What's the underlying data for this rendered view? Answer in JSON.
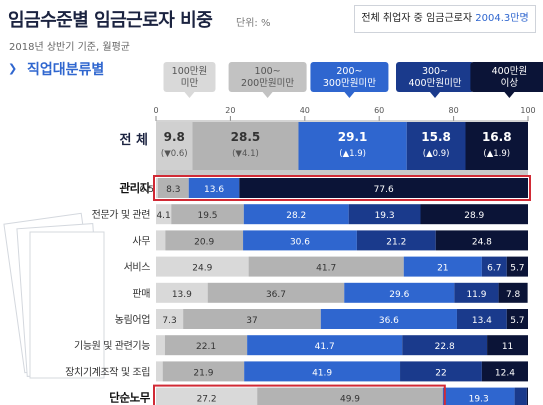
{
  "header": {
    "title": "임금수준별 임금근로자 비중",
    "unit": "단위: %",
    "subtitle": "2018년 상반기 기준, 월평균",
    "total_label": "전체 취업자 중 임금근로자",
    "total_value": "2004.3만명",
    "section": "직업대분류별"
  },
  "chart_data": {
    "type": "bar",
    "orientation": "horizontal-stacked",
    "xlim": [
      0,
      100
    ],
    "xticks": [
      0,
      20,
      40,
      60,
      80,
      100
    ],
    "legend_position": "top",
    "series": [
      {
        "name": "100만원 미만",
        "color": "#d9d9d9"
      },
      {
        "name": "100~200만원미만",
        "color": "#b3b3b3"
      },
      {
        "name": "200~300만원미만",
        "color": "#2f66cf"
      },
      {
        "name": "300~400만원미만",
        "color": "#1a3a8c"
      },
      {
        "name": "400만원 이상",
        "color": "#0b1437"
      }
    ],
    "total": {
      "label": "전 체",
      "values": [
        9.8,
        28.5,
        29.1,
        15.8,
        16.8
      ],
      "changes": [
        "▼0.6",
        "▼4.1",
        "▲1.9",
        "▲0.9",
        "▲1.9"
      ]
    },
    "categories": [
      "관리자",
      "전문가 및 관련",
      "사무",
      "서비스",
      "판매",
      "농림어업",
      "기능원 및 관련기능",
      "장치기계조작 및 조립",
      "단순노무"
    ],
    "values": [
      [
        0.5,
        8.3,
        13.6,
        0,
        77.6
      ],
      [
        4.1,
        19.5,
        28.2,
        19.3,
        28.9
      ],
      [
        2.5,
        20.9,
        30.6,
        21.2,
        24.8
      ],
      [
        24.9,
        41.7,
        21,
        6.7,
        5.7
      ],
      [
        13.9,
        36.7,
        29.6,
        11.9,
        7.8
      ],
      [
        7.3,
        37,
        36.6,
        13.4,
        5.7
      ],
      [
        2.4,
        22.1,
        41.7,
        22.8,
        11
      ],
      [
        1.8,
        21.9,
        41.9,
        22,
        12.4
      ],
      [
        27.2,
        49.9,
        19.3,
        3.3,
        0.3
      ]
    ],
    "highlighted": [
      "관리자",
      "단순노무"
    ]
  }
}
